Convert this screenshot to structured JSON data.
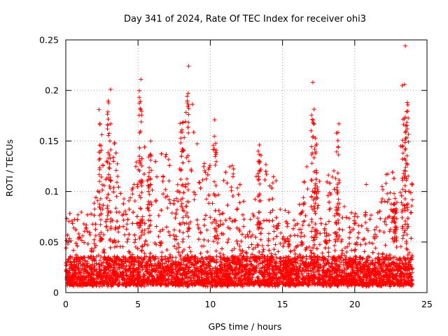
{
  "chart_data": {
    "type": "scatter",
    "title": "Day 341 of 2024, Rate Of TEC Index for receiver ohi3",
    "xlabel": "GPS time / hours",
    "ylabel": "ROTI / TECUs",
    "xlim": [
      0,
      25
    ],
    "ylim": [
      0,
      0.25
    ],
    "xticks": [
      0,
      5,
      10,
      15,
      20,
      25
    ],
    "yticks": [
      0,
      0.05,
      0.1,
      0.15,
      0.2,
      0.25
    ],
    "xtick_labels": [
      "0",
      "5",
      "10",
      "15",
      "20",
      "25"
    ],
    "ytick_labels": [
      "0",
      "0.05",
      "0.1",
      "0.15",
      "0.2",
      "0.25"
    ],
    "grid": true,
    "marker": "+",
    "color": "#ff0000",
    "data_range_hours": [
      0,
      24
    ],
    "notable_points": [
      {
        "x": 23.5,
        "y": 0.244
      },
      {
        "x": 8.5,
        "y": 0.224
      },
      {
        "x": 5.2,
        "y": 0.211
      },
      {
        "x": 17.1,
        "y": 0.208
      },
      {
        "x": 3.1,
        "y": 0.201
      },
      {
        "x": 2.3,
        "y": 0.181
      },
      {
        "x": 10.3,
        "y": 0.171
      },
      {
        "x": 18.9,
        "y": 0.167
      },
      {
        "x": 13.4,
        "y": 0.146
      },
      {
        "x": 20.8,
        "y": 0.107
      }
    ]
  }
}
